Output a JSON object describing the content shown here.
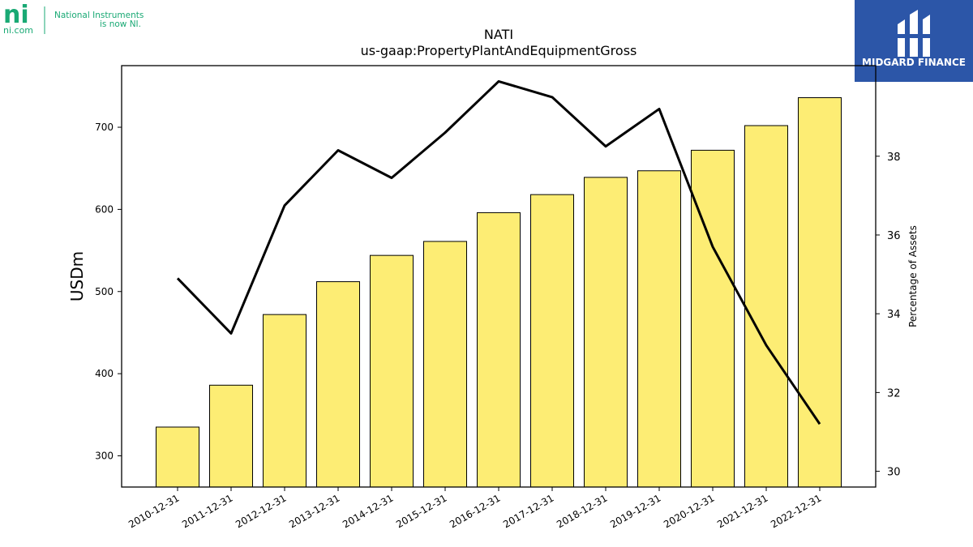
{
  "header": {
    "ni_logo": {
      "mark": "ni",
      "domain": "ni.com",
      "tagline_line1": "National Instruments",
      "tagline_line2": "is now NI."
    },
    "mf_logo": {
      "name": "MIDGARD FINANCE",
      "brand_color": "#2c56a8"
    }
  },
  "chart_data": {
    "type": "bar",
    "title": "NATI",
    "subtitle": "us-gaap:PropertyPlantAndEquipmentGross",
    "categories": [
      "2010-12-31",
      "2011-12-31",
      "2012-12-31",
      "2013-12-31",
      "2014-12-31",
      "2015-12-31",
      "2016-12-31",
      "2017-12-31",
      "2018-12-31",
      "2019-12-31",
      "2020-12-31",
      "2021-12-31",
      "2022-12-31"
    ],
    "series": [
      {
        "kind": "bar",
        "axis": "left",
        "values": [
          335,
          386,
          472,
          512,
          544,
          561,
          596,
          618,
          639,
          647,
          672,
          702,
          736
        ],
        "color": "#fded74",
        "edge_color": "#000000"
      },
      {
        "kind": "line",
        "axis": "right",
        "values": [
          34.9,
          33.5,
          36.75,
          38.15,
          37.45,
          38.6,
          39.9,
          39.5,
          38.25,
          39.2,
          35.7,
          33.2,
          31.2
        ],
        "color": "#000000"
      }
    ],
    "ylabel": "USDm",
    "y2label": "Percentage of Assets",
    "ylim": [
      262,
      775
    ],
    "y2lim": [
      29.6,
      40.3
    ],
    "yticks": [
      300,
      400,
      500,
      600,
      700
    ],
    "y2ticks": [
      30,
      32,
      34,
      36,
      38
    ],
    "grid": false,
    "legend": "none"
  }
}
